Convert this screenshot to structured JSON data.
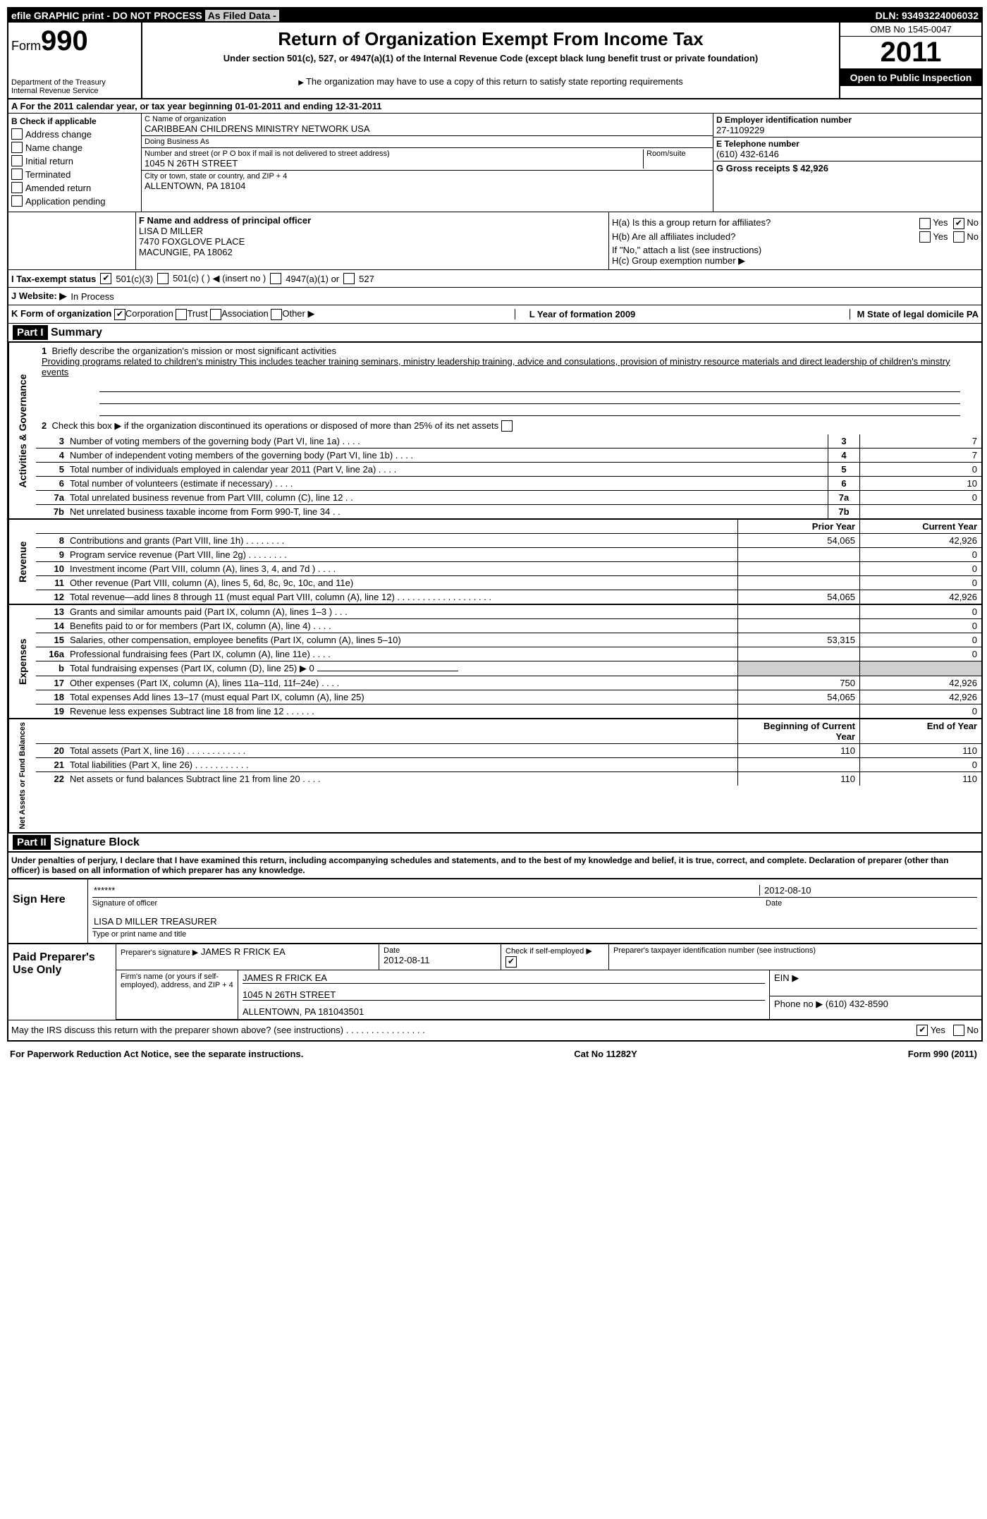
{
  "top_bar": {
    "left": "efile GRAPHIC print - DO NOT PROCESS",
    "mid": "As Filed Data -",
    "right": "DLN: 93493224006032"
  },
  "header": {
    "form_label": "Form",
    "form_number": "990",
    "title": "Return of Organization Exempt From Income Tax",
    "subtitle": "Under section 501(c), 527, or 4947(a)(1) of the Internal Revenue Code (except black lung benefit trust or private foundation)",
    "dept": "Department of the Treasury",
    "irs": "Internal Revenue Service",
    "note": "The organization may have to use a copy of this return to satisfy state reporting requirements",
    "omb": "OMB No 1545-0047",
    "year": "2011",
    "open": "Open to Public Inspection"
  },
  "row_a": "A  For the 2011 calendar year, or tax year beginning 01-01-2011    and ending 12-31-2011",
  "section_b": {
    "label": "B Check if applicable",
    "items": [
      "Address change",
      "Name change",
      "Initial return",
      "Terminated",
      "Amended return",
      "Application pending"
    ]
  },
  "section_c": {
    "name_label": "C Name of organization",
    "name": "CARIBBEAN CHILDRENS MINISTRY NETWORK USA",
    "dba_label": "Doing Business As",
    "dba": "",
    "street_label": "Number and street (or P O  box if mail is not delivered to street address)",
    "room_label": "Room/suite",
    "street": "1045 N 26TH STREET",
    "city_label": "City or town, state or country, and ZIP + 4",
    "city": "ALLENTOWN, PA  18104"
  },
  "section_d": {
    "ein_label": "D Employer identification number",
    "ein": "27-1109229",
    "phone_label": "E Telephone number",
    "phone": "(610) 432-6146",
    "gross_label": "G Gross receipts $ 42,926"
  },
  "section_f": {
    "label": "F  Name and address of principal officer",
    "name": "LISA D MILLER",
    "addr1": "7470 FOXGLOVE PLACE",
    "addr2": "MACUNGIE, PA  18062"
  },
  "section_h": {
    "ha": "H(a)  Is this a group return for affiliates?",
    "ha_yes": "Yes",
    "ha_no": "No",
    "hb": "H(b)  Are all affiliates included?",
    "hb_note": "If \"No,\" attach a list  (see instructions)",
    "hc": "H(c)   Group exemption number ▶"
  },
  "row_i": {
    "label": "I   Tax-exempt status",
    "opts": [
      "501(c)(3)",
      "501(c) (   ) ◀ (insert no )",
      "4947(a)(1) or",
      "527"
    ]
  },
  "row_j": {
    "label": "J   Website: ▶",
    "value": "In Process"
  },
  "row_k": {
    "label": "K Form of organization",
    "opts": [
      "Corporation",
      "Trust",
      "Association",
      "Other ▶"
    ],
    "year": "L Year of formation  2009",
    "state": "M State of legal domicile  PA"
  },
  "part1": {
    "header": "Part I",
    "title": "Summary"
  },
  "gov_section": {
    "label": "Activities & Governance",
    "line1_desc": "Briefly describe the organization's mission or most significant activities",
    "line1_text": "Providing programs related to children's ministry  This includes teacher training seminars, ministry leadership training, advice and consulations, provision of ministry resource materials and direct leadership of children's minstry events",
    "line2": "Check this box ▶    if the organization discontinued its operations or disposed of more than 25% of its net assets",
    "rows": [
      {
        "num": "3",
        "desc": "Number of voting members of the governing body (Part VI, line 1a)  .    .    .    .",
        "box": "3",
        "val": "7"
      },
      {
        "num": "4",
        "desc": "Number of independent voting members of the governing body (Part VI, line 1b)   .    .    .    .",
        "box": "4",
        "val": "7"
      },
      {
        "num": "5",
        "desc": "Total number of individuals employed in calendar year 2011 (Part V, line 2a)  .    .    .    .",
        "box": "5",
        "val": "0"
      },
      {
        "num": "6",
        "desc": "Total number of volunteers (estimate if necessary)   .    .    .    .",
        "box": "6",
        "val": "10"
      },
      {
        "num": "7a",
        "desc": "Total unrelated business revenue from Part VIII, column (C), line 12   .    .",
        "box": "7a",
        "val": "0"
      },
      {
        "num": "7b",
        "desc": "Net unrelated business taxable income from Form 990-T, line 34   .    .",
        "box": "7b",
        "val": ""
      }
    ]
  },
  "two_col_header": {
    "prior": "Prior Year",
    "current": "Current Year"
  },
  "revenue": {
    "label": "Revenue",
    "rows": [
      {
        "num": "8",
        "desc": "Contributions and grants (Part VIII, line 1h)   .    .    .    .    .    .    .    .",
        "prior": "54,065",
        "current": "42,926"
      },
      {
        "num": "9",
        "desc": "Program service revenue (Part VIII, line 2g)   .    .    .    .    .    .    .    .",
        "prior": "",
        "current": "0"
      },
      {
        "num": "10",
        "desc": "Investment income (Part VIII, column (A), lines 3, 4, and 7d )   .    .    .    .",
        "prior": "",
        "current": "0"
      },
      {
        "num": "11",
        "desc": "Other revenue (Part VIII, column (A), lines 5, 6d, 8c, 9c, 10c, and 11e)",
        "prior": "",
        "current": "0"
      },
      {
        "num": "12",
        "desc": "Total revenue—add lines 8 through 11 (must equal Part VIII, column (A), line 12)   .    .    .    .    .    .    .    .    .    .    .    .    .    .    .    .    .    .    .",
        "prior": "54,065",
        "current": "42,926"
      }
    ]
  },
  "expenses": {
    "label": "Expenses",
    "rows": [
      {
        "num": "13",
        "desc": "Grants and similar amounts paid (Part IX, column (A), lines 1–3 )   .    .    .",
        "prior": "",
        "current": "0"
      },
      {
        "num": "14",
        "desc": "Benefits paid to or for members (Part IX, column (A), line 4)   .    .    .    .",
        "prior": "",
        "current": "0"
      },
      {
        "num": "15",
        "desc": "Salaries, other compensation, employee benefits (Part IX, column (A), lines 5–10)",
        "prior": "53,315",
        "current": "0"
      },
      {
        "num": "16a",
        "desc": "Professional fundraising fees (Part IX, column (A), line 11e)   .    .    .    .",
        "prior": "",
        "current": "0"
      },
      {
        "num": "b",
        "desc": "Total fundraising expenses (Part IX, column (D), line 25)  ▶ 0",
        "prior": "—",
        "current": "—"
      },
      {
        "num": "17",
        "desc": "Other expenses (Part IX, column (A), lines 11a–11d, 11f–24e)   .    .    .    .",
        "prior": "750",
        "current": "42,926"
      },
      {
        "num": "18",
        "desc": "Total expenses  Add lines 13–17 (must equal Part IX, column (A), line 25)",
        "prior": "54,065",
        "current": "42,926"
      },
      {
        "num": "19",
        "desc": "Revenue less expenses  Subtract line 18 from line 12   .    .    .    .    .    .",
        "prior": "",
        "current": "0"
      }
    ]
  },
  "netassets_header": {
    "begin": "Beginning of Current Year",
    "end": "End of Year"
  },
  "netassets": {
    "label": "Net Assets or Fund Balances",
    "rows": [
      {
        "num": "20",
        "desc": "Total assets (Part X, line 16)   .    .    .    .    .    .    .    .    .    .    .    .",
        "prior": "110",
        "current": "110"
      },
      {
        "num": "21",
        "desc": "Total liabilities (Part X, line 26)    .    .    .    .    .    .    .    .    .    .    .",
        "prior": "",
        "current": "0"
      },
      {
        "num": "22",
        "desc": "Net assets or fund balances  Subtract line 21 from line 20   .    .    .    .",
        "prior": "110",
        "current": "110"
      }
    ]
  },
  "part2": {
    "header": "Part II",
    "title": "Signature Block",
    "declaration": "Under penalties of perjury, I declare that I have examined this return, including accompanying schedules and statements, and to the best of my knowledge and belief, it is true, correct, and complete. Declaration of preparer (other than officer) is based on all information of which preparer has any knowledge."
  },
  "sign": {
    "label": "Sign Here",
    "sig_stars": "******",
    "sig_date": "2012-08-10",
    "sig_of_officer": "Signature of officer",
    "date_label": "Date",
    "name_title": "LISA D MILLER  TREASURER",
    "type_label": "Type or print name and title"
  },
  "preparer": {
    "label": "Paid Preparer's Use Only",
    "prep_sig_label": "Preparer's signature ▶",
    "prep_name": "JAMES R FRICK EA",
    "date_label": "Date",
    "date": "2012-08-11",
    "self_emp_label": "Check if self-employed ▶",
    "ptin_label": "Preparer's taxpayer identification number (see instructions)",
    "firm_label": "Firm's name (or yours if self-employed), address, and ZIP + 4",
    "firm_name": "JAMES R FRICK EA",
    "firm_addr1": "1045 N 26TH STREET",
    "firm_addr2": "ALLENTOWN, PA  181043501",
    "ein_label": "EIN ▶",
    "phone_label": "Phone no  ▶",
    "phone": "(610) 432-8590"
  },
  "footer": {
    "discuss": "May the IRS discuss this return with the preparer shown above? (see instructions)   .    .    .    .    .    .    .    .    .    .    .    .    .    .    .    .",
    "yes": "Yes",
    "no": "No",
    "paperwork": "For Paperwork Reduction Act Notice, see the separate instructions.",
    "cat": "Cat  No  11282Y",
    "form": "Form 990 (2011)"
  }
}
